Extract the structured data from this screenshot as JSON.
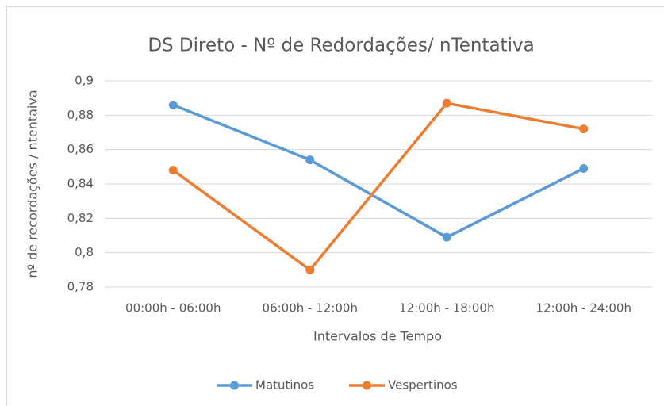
{
  "chart_data": {
    "type": "line",
    "title": "DS Direto - Nº de Redordações/  nTentativa",
    "x_label": "Intervalos de Tempo",
    "y_label": "nº de recordações / ntentaiva",
    "categories": [
      "00:00h - 06:00h",
      "06:00h - 12:00h",
      "12:00h - 18:00h",
      "12:00h - 24:00h"
    ],
    "series": [
      {
        "name": "Matutinos",
        "color": "#5b9bd5",
        "values": [
          0.886,
          0.854,
          0.809,
          0.849
        ]
      },
      {
        "name": "Vespertinos",
        "color": "#ed7d31",
        "values": [
          0.848,
          0.79,
          0.887,
          0.872
        ]
      }
    ],
    "ylim": [
      0.78,
      0.9
    ],
    "yticks": [
      {
        "value": 0.78,
        "label": "0,78"
      },
      {
        "value": 0.8,
        "label": "0,8"
      },
      {
        "value": 0.82,
        "label": "0,82"
      },
      {
        "value": 0.84,
        "label": "0,84"
      },
      {
        "value": 0.86,
        "label": "0,86"
      },
      {
        "value": 0.88,
        "label": "0,88"
      },
      {
        "value": 0.9,
        "label": "0,9"
      }
    ],
    "grid": true,
    "legend": "bottom"
  }
}
